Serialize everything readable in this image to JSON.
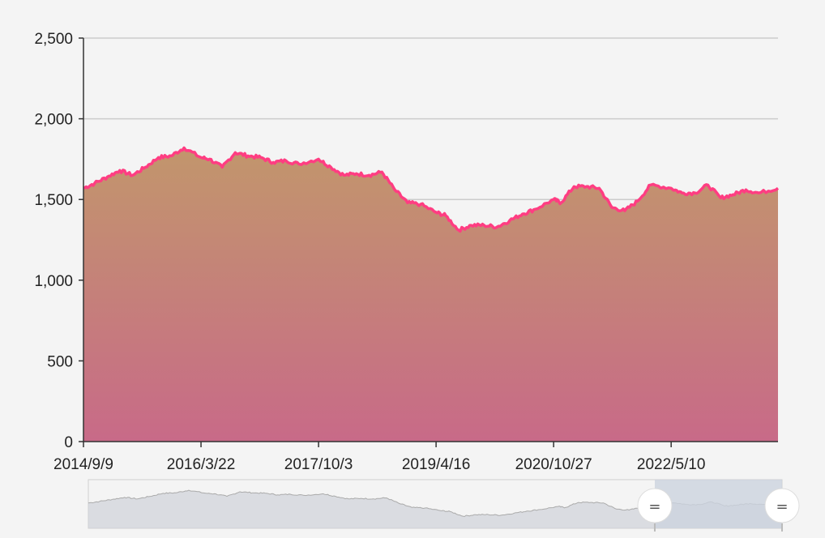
{
  "chart_data": {
    "type": "area",
    "title": "",
    "xlabel": "",
    "ylabel": "",
    "y_ticks": [
      "0",
      "500",
      "1,000",
      "1,500",
      "2,000",
      "2,500"
    ],
    "y_tick_values": [
      0,
      500,
      1000,
      1500,
      2000,
      2500
    ],
    "ylim": [
      0,
      2500
    ],
    "x_ticks": [
      "2014/9/9",
      "2016/3/22",
      "2017/10/3",
      "2019/4/16",
      "2020/10/27",
      "2022/5/10"
    ],
    "xlim": [
      "2014/9/9",
      "2023/10/1"
    ],
    "grid": true,
    "legend": "none",
    "colors": {
      "line": "#ff3d82",
      "fill_top": "#c2966c",
      "fill_bottom": "#c86a88",
      "grid": "#cccccc",
      "axis": "#333333"
    },
    "series": [
      {
        "x": [
          "2014/9/9",
          "2014/11/1",
          "2015/1/1",
          "2015/3/1",
          "2015/5/1",
          "2015/7/1",
          "2015/9/1",
          "2015/11/1",
          "2016/1/1",
          "2016/3/22",
          "2016/5/1",
          "2016/7/1",
          "2016/9/1",
          "2016/11/1",
          "2017/1/1",
          "2017/3/1",
          "2017/5/1",
          "2017/7/1",
          "2017/10/3",
          "2017/12/1",
          "2018/2/1",
          "2018/4/1",
          "2018/6/1",
          "2018/8/1",
          "2018/10/1",
          "2018/12/1",
          "2019/2/1",
          "2019/4/16",
          "2019/6/1",
          "2019/8/1",
          "2019/10/1",
          "2019/12/1",
          "2020/2/1",
          "2020/4/1",
          "2020/6/1",
          "2020/8/1",
          "2020/10/27",
          "2020/12/1",
          "2021/2/1",
          "2021/4/1",
          "2021/6/1",
          "2021/8/1",
          "2021/10/1",
          "2021/12/1",
          "2022/2/1",
          "2022/5/10",
          "2022/7/1",
          "2022/9/1",
          "2022/11/1",
          "2023/1/1",
          "2023/3/1",
          "2023/5/1",
          "2023/7/1",
          "2023/10/1"
        ],
        "values": [
          1570,
          1600,
          1640,
          1680,
          1650,
          1700,
          1760,
          1770,
          1820,
          1760,
          1750,
          1700,
          1790,
          1770,
          1760,
          1730,
          1740,
          1720,
          1750,
          1700,
          1650,
          1660,
          1650,
          1670,
          1560,
          1480,
          1470,
          1420,
          1400,
          1310,
          1340,
          1340,
          1330,
          1370,
          1410,
          1440,
          1500,
          1480,
          1580,
          1580,
          1570,
          1450,
          1430,
          1490,
          1590,
          1570,
          1540,
          1540,
          1590,
          1510,
          1530,
          1560,
          1540,
          1570
        ]
      }
    ]
  },
  "datazoom": {
    "window_start": "2022/2/1",
    "window_end": "2023/10/1",
    "handle_glyph": "=",
    "overview_color": "#cfd2d8",
    "window_color": "#ccd3de"
  }
}
